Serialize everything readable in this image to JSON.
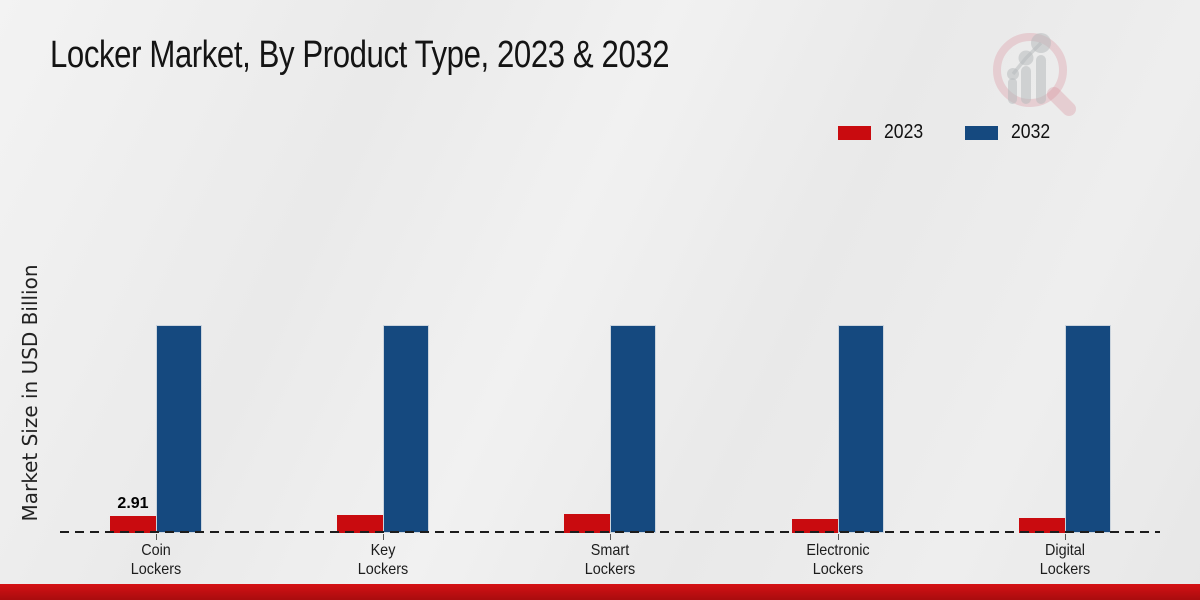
{
  "page": {
    "title": "Locker Market, By Product Type, 2023 & 2032"
  },
  "colors": {
    "red_2023": "#c90b0f",
    "blue_2032": "#15497f",
    "dash_line": "#1c1c1c",
    "band_top": "#d51114",
    "band_bottom": "#a80c0e"
  },
  "legend": {
    "items": [
      {
        "label": "2023",
        "color": "#c90b0f"
      },
      {
        "label": "2032",
        "color": "#15497f"
      }
    ]
  },
  "watermark_icon": "magnifier-bar-chart-logo",
  "chart_data": {
    "type": "bar",
    "title": "Locker Market, By Product Type, 2023 & 2032",
    "xlabel": "",
    "ylabel": "Market Size in USD Billion",
    "categories": [
      "Coin Lockers",
      "Key Lockers",
      "Smart Lockers",
      "Electronic Lockers",
      "Digital Lockers"
    ],
    "series": [
      {
        "name": "2023",
        "color": "#c90b0f",
        "values": [
          2.91,
          3.08,
          3.25,
          2.4,
          2.62
        ]
      },
      {
        "name": "2032",
        "color": "#15497f",
        "values": [
          35.6,
          35.6,
          35.6,
          35.6,
          35.6
        ]
      }
    ],
    "data_labels": [
      {
        "series": "2023",
        "category": "Coin Lockers",
        "text": "2.91"
      }
    ],
    "ylim": [
      0,
      38
    ],
    "grid": false,
    "legend_position": "top-right",
    "baseline_style": "dashed"
  }
}
